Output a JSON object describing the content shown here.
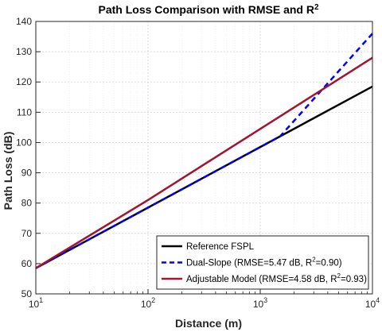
{
  "chart_data": {
    "type": "line",
    "title": "Path Loss Comparison with RMSE and R",
    "title_sup": "2",
    "xlabel": "Distance (m)",
    "ylabel": "Path Loss (dB)",
    "xscale": "log",
    "xlim": [
      10,
      10000
    ],
    "ylim": [
      50,
      140
    ],
    "grid": "on",
    "legend_position": "bottom-right",
    "x_ticks": [
      {
        "value": 10,
        "base": "10",
        "exp": "1"
      },
      {
        "value": 100,
        "base": "10",
        "exp": "2"
      },
      {
        "value": 1000,
        "base": "10",
        "exp": "3"
      },
      {
        "value": 10000,
        "base": "10",
        "exp": "4"
      }
    ],
    "y_ticks": [
      "50",
      "60",
      "70",
      "80",
      "90",
      "100",
      "110",
      "120",
      "130",
      "140"
    ],
    "series": [
      {
        "name": "Reference FSPL",
        "color": "#000000",
        "dash": "solid",
        "x": [
          10,
          100,
          1000,
          10000
        ],
        "y": [
          58.5,
          78.5,
          98.5,
          118.5
        ]
      },
      {
        "name_parts": [
          "Dual-Slope (RMSE=5.47 dB, R",
          "2",
          "=0.90)"
        ],
        "color": "#0000ff",
        "dash": "dashed",
        "x": [
          10,
          100,
          1000,
          1500,
          10000
        ],
        "y": [
          58.5,
          78.5,
          98.5,
          102.0,
          136.0
        ]
      },
      {
        "name_parts": [
          "Adjustable Model (RMSE=4.58 dB, R",
          "2",
          "=0.93)"
        ],
        "color": "#a2142f",
        "dash": "solid",
        "x": [
          10,
          100,
          1000,
          10000
        ],
        "y": [
          58.5,
          81.0,
          104.5,
          128.0
        ]
      }
    ]
  }
}
